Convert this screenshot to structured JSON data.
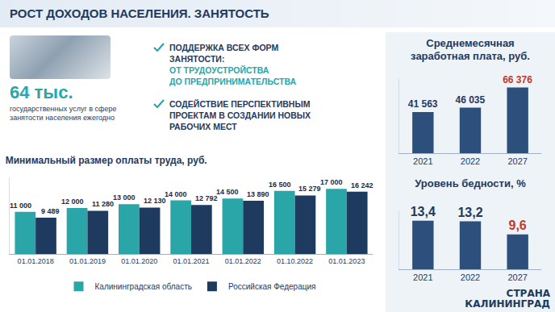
{
  "header": {
    "title": "РОСТ ДОХОДОВ НАСЕЛЕНИЯ. ЗАНЯТОСТЬ"
  },
  "info": {
    "value": "64 тыс.",
    "description": "государственных услуг в сфере занятости населения ежегодно"
  },
  "bullets": [
    {
      "lines": [
        "ПОДДЕРЖКА ВСЕХ ФОРМ",
        "ЗАНЯТОСТИ:"
      ],
      "sub": [
        "ОТ ТРУДОУСТРОЙСТВА",
        "ДО ПРЕДПРИНИМАТЕЛЬСТВА"
      ]
    },
    {
      "lines": [
        "СОДЕЙСТВИЕ ПЕРСПЕКТИВНЫМ",
        "ПРОЕКТАМ В СОЗДАНИИ НОВЫХ",
        "РАБОЧИХ МЕСТ"
      ]
    }
  ],
  "watermark": [
    "СТРАНА",
    "КАЛИНИНГРАД"
  ],
  "chart_data": [
    {
      "type": "bar",
      "title": "Минимальный размер оплаты труда, руб.",
      "categories": [
        "01.01.2018",
        "01.01.2019",
        "01.01.2020",
        "01.01.2021",
        "01.01.2022",
        "01.10.2022",
        "01.01.2023"
      ],
      "series": [
        {
          "name": "Калининградская область",
          "color": "#2aa5a8",
          "values": [
            11000,
            12000,
            13000,
            14000,
            14500,
            16500,
            17000
          ],
          "value_labels": [
            "11 000",
            "12 000",
            "13 000",
            "14 000",
            "14 500",
            "16 500",
            "17 000"
          ]
        },
        {
          "name": "Российская Федерация",
          "color": "#1f3a5f",
          "values": [
            9489,
            11280,
            12130,
            12792,
            13890,
            15279,
            16242
          ],
          "value_labels": [
            "9 489",
            "11 280",
            "12 130",
            "12 792",
            "13 890",
            "15 279",
            "16 242"
          ]
        }
      ],
      "ylim": [
        0,
        20000
      ],
      "grid": false,
      "legend": "bottom",
      "data_labels": true,
      "tick_labels": "x"
    },
    {
      "type": "bar",
      "title": "Среднемесячная заработная плата, руб.",
      "categories": [
        "2021",
        "2022",
        "2027"
      ],
      "values": [
        41563,
        46035,
        66376
      ],
      "value_labels": [
        "41 563",
        "46 035",
        "66 376"
      ],
      "color": "#2c4f7c",
      "ylim": [
        0,
        75000
      ],
      "grid": false,
      "data_labels": true,
      "tick_labels": "x"
    },
    {
      "type": "bar",
      "title": "Уровень бедности, %",
      "categories": [
        "2021",
        "2022",
        "2027"
      ],
      "values": [
        13.4,
        13.2,
        9.6
      ],
      "value_labels": [
        "13,4",
        "13,2",
        "9,6"
      ],
      "color": "#2c4f7c",
      "ylim": [
        0,
        16
      ],
      "grid": false,
      "data_labels": true,
      "tick_labels": "x"
    }
  ]
}
